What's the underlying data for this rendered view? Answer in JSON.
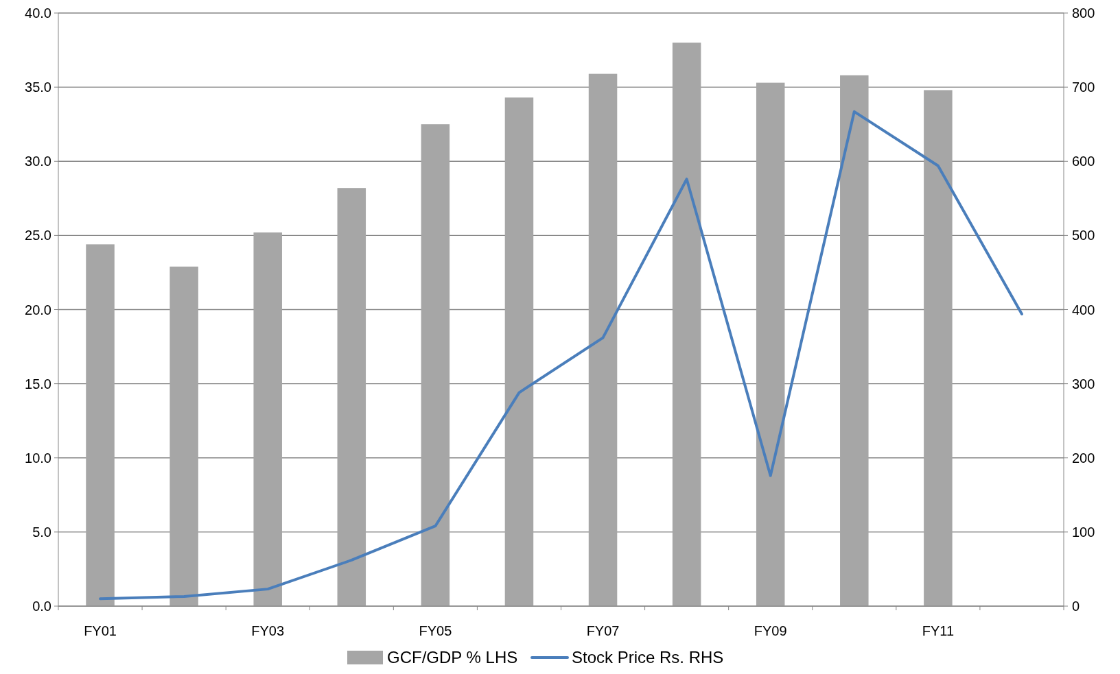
{
  "chart_data": {
    "type": "bar",
    "categories": [
      "FY01",
      null,
      "FY03",
      null,
      "FY05",
      null,
      "FY07",
      null,
      "FY09",
      null,
      "FY11",
      null
    ],
    "series": [
      {
        "name": "GCF/GDP % LHS",
        "color": "#a6a6a6",
        "values": [
          24.4,
          22.9,
          25.2,
          28.2,
          32.5,
          34.3,
          35.9,
          38.0,
          35.3,
          35.8,
          34.8,
          null
        ]
      },
      {
        "name": "Stock Price Rs. RHS",
        "type": "line",
        "axis": "y2",
        "color": "#4a7ebb",
        "values": [
          10,
          13,
          23,
          62,
          108,
          288,
          362,
          576,
          176,
          667,
          594,
          394
        ]
      }
    ],
    "ylim": [
      0,
      40
    ],
    "yticks": [
      {
        "value": 0,
        "label": "0.0"
      },
      {
        "value": 5,
        "label": "5.0"
      },
      {
        "value": 10,
        "label": "10.0"
      },
      {
        "value": 15,
        "label": "15.0"
      },
      {
        "value": 20,
        "label": "20.0"
      },
      {
        "value": 25,
        "label": "25.0"
      },
      {
        "value": 30,
        "label": "30.0"
      },
      {
        "value": 35,
        "label": "35.0"
      },
      {
        "value": 40,
        "label": "40.0"
      }
    ],
    "y2lim": [
      0,
      800
    ],
    "y2ticks": [
      0,
      100,
      200,
      300,
      400,
      500,
      600,
      700,
      800
    ],
    "grid": "y",
    "legend": "bottom",
    "marker": "none",
    "line_style": "solid"
  }
}
